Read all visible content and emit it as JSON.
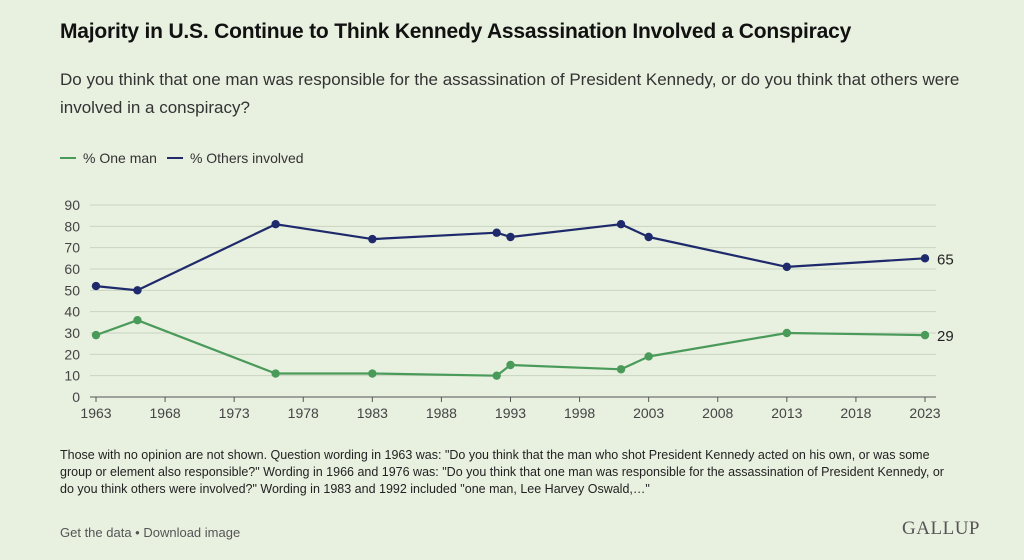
{
  "title": "Majority in U.S. Continue to Think Kennedy Assassination Involved a Conspiracy",
  "subtitle": "Do you think that one man was responsible for the assassination of President Kennedy, or do you think that others were involved in a conspiracy?",
  "legend": [
    {
      "label": "% One man",
      "color": "#4a9a5a"
    },
    {
      "label": "% Others involved",
      "color": "#1e2a6b"
    }
  ],
  "footnote": "Those with no opinion are not shown. Question wording in 1963 was: \"Do you think that the man who shot President Kennedy acted on his own, or was some group or element also responsible?\" Wording in 1966 and 1976 was: \"Do you think that one man was responsible for the assassination of President Kennedy, or do you think others were involved?\" Wording in 1983 and 1992 included \"one man, Lee Harvey Oswald,…\"",
  "footer": {
    "get_data": "Get the data",
    "separator": " • ",
    "download": "Download image"
  },
  "logo": "GALLUP",
  "chart_data": {
    "type": "line",
    "x": [
      1963,
      1966,
      1976,
      1983,
      1992,
      1993,
      2001,
      2003,
      2013,
      2023
    ],
    "series": [
      {
        "name": "% One man",
        "color": "#4a9a5a",
        "values": [
          29,
          36,
          11,
          11,
          10,
          15,
          13,
          19,
          30,
          29
        ],
        "end_label": "29"
      },
      {
        "name": "% Others involved",
        "color": "#1e2a6b",
        "values": [
          52,
          50,
          81,
          74,
          77,
          75,
          81,
          75,
          61,
          65
        ],
        "end_label": "65"
      }
    ],
    "xticks": [
      1963,
      1968,
      1973,
      1978,
      1983,
      1988,
      1993,
      1998,
      2003,
      2008,
      2013,
      2018,
      2023
    ],
    "yticks": [
      0,
      10,
      20,
      30,
      40,
      50,
      60,
      70,
      80,
      90
    ],
    "xlim": [
      1963,
      2023
    ],
    "ylim": [
      0,
      90
    ],
    "grid": true
  }
}
